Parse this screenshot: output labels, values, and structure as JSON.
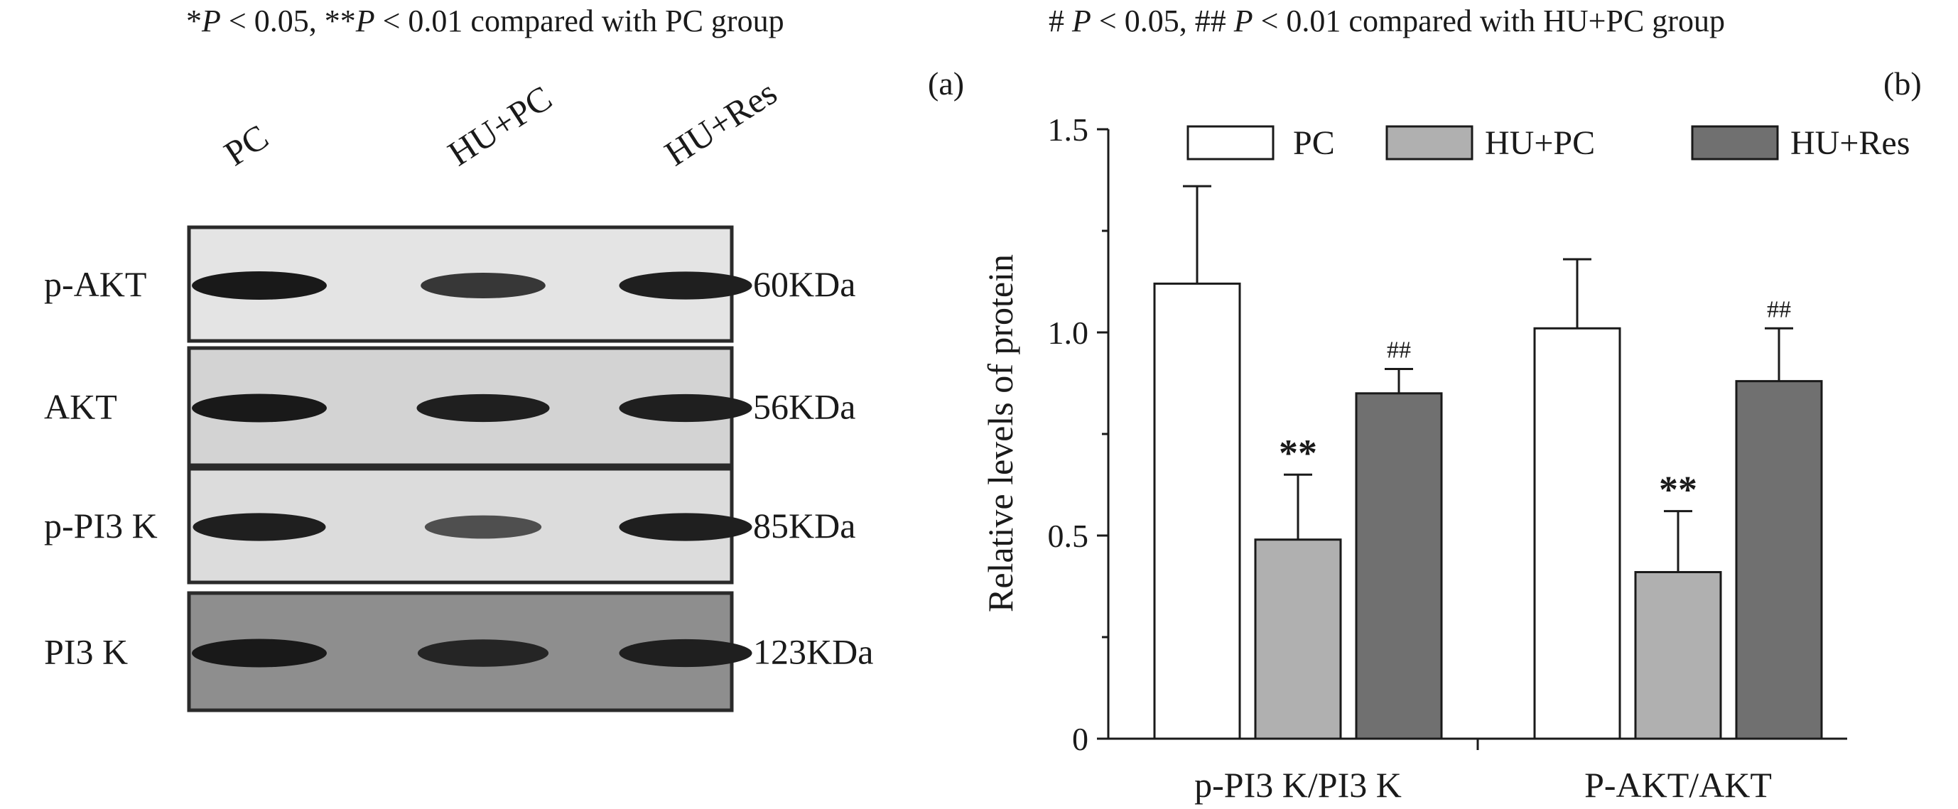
{
  "notes": {
    "left": {
      "p1": "*",
      "p2": "P",
      "p3": " < 0.05, **",
      "p4": "P",
      "p5": " < 0.01 compared with PC group"
    },
    "right": {
      "p1": "# ",
      "p2": "P",
      "p3": " < 0.05, ## ",
      "p4": "P",
      "p5": " < 0.01 compared with HU+PC group"
    }
  },
  "panel_a": {
    "label": "(a)",
    "columns": [
      "PC",
      "HU+PC",
      "HU+Res"
    ],
    "rows": [
      {
        "protein": "p-AKT",
        "size": "60KDa",
        "intensity": [
          1.0,
          0.75,
          0.95
        ]
      },
      {
        "protein": "AKT",
        "size": "56KDa",
        "intensity": [
          1.0,
          0.95,
          0.95
        ]
      },
      {
        "protein": "p-PI3 K",
        "size": "85KDa",
        "intensity": [
          0.95,
          0.55,
          0.95
        ]
      },
      {
        "protein": "PI3 K",
        "size": "123KDa",
        "intensity": [
          1.0,
          0.9,
          0.95
        ]
      }
    ]
  },
  "panel_b": {
    "label": "(b)",
    "colors": {
      "PC": "#ffffff",
      "HU+PC": "#b0b0b0",
      "HU+Res": "#707070"
    }
  },
  "chart_data": {
    "type": "bar",
    "categories": [
      "p-PI3 K/PI3 K",
      "P-AKT/AKT"
    ],
    "series": [
      {
        "name": "PC",
        "values": [
          1.12,
          1.01
        ],
        "errors": [
          0.24,
          0.17
        ],
        "marks": [
          "",
          ""
        ]
      },
      {
        "name": "HU+PC",
        "values": [
          0.49,
          0.41
        ],
        "errors": [
          0.16,
          0.15
        ],
        "marks": [
          "**",
          "**"
        ]
      },
      {
        "name": "HU+Res",
        "values": [
          0.85,
          0.88
        ],
        "errors": [
          0.06,
          0.13
        ],
        "marks": [
          "##",
          "##"
        ]
      }
    ],
    "ylabel": "Relative levels of protein",
    "ylim": [
      0,
      1.5
    ],
    "yticks": [
      0,
      0.5,
      1.0,
      1.5
    ],
    "ytick_labels": [
      "0",
      "0.5",
      "1.0",
      "1.5"
    ],
    "legend_position": "top"
  }
}
